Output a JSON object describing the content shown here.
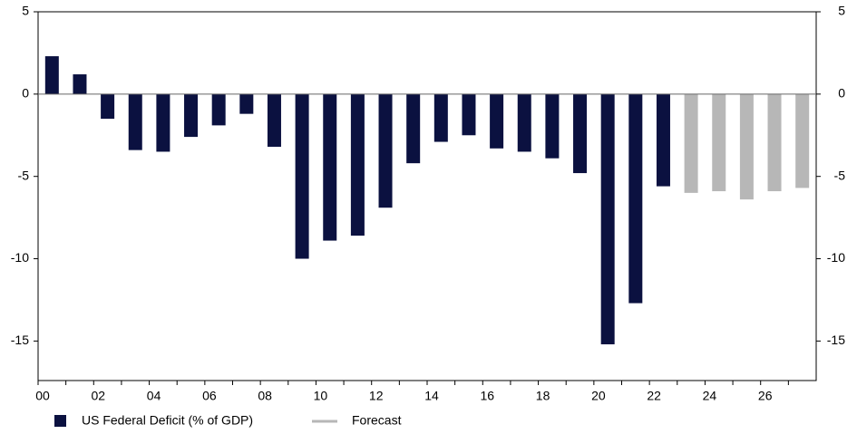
{
  "chart_data": {
    "type": "bar",
    "categories": [
      "00",
      null,
      "02",
      null,
      "04",
      null,
      "06",
      null,
      "08",
      null,
      "10",
      null,
      "12",
      null,
      "14",
      null,
      "16",
      null,
      "18",
      null,
      "20",
      null,
      "22",
      null,
      "24",
      null,
      "26",
      null
    ],
    "series": [
      {
        "name": "US Federal Deficit (% of GDP)",
        "color": "#0b1140",
        "values": [
          2.3,
          1.2,
          -1.5,
          -3.4,
          -3.5,
          -2.6,
          -1.9,
          -1.2,
          -3.2,
          -10.0,
          -8.9,
          -8.6,
          -6.9,
          -4.2,
          -2.9,
          -2.5,
          -3.3,
          -3.5,
          -3.9,
          -4.8,
          -15.2,
          -12.7,
          -5.6,
          null,
          null,
          null,
          null,
          null
        ]
      },
      {
        "name": "Forecast",
        "color": "#b7b7b7",
        "values": [
          null,
          null,
          null,
          null,
          null,
          null,
          null,
          null,
          null,
          null,
          null,
          null,
          null,
          null,
          null,
          null,
          null,
          null,
          null,
          null,
          null,
          null,
          null,
          -6.0,
          -5.9,
          -6.4,
          -5.9,
          -5.7
        ]
      }
    ],
    "ylim": [
      -17.4,
      5
    ],
    "yticks": [
      5,
      0,
      -5,
      -10,
      -15
    ]
  }
}
